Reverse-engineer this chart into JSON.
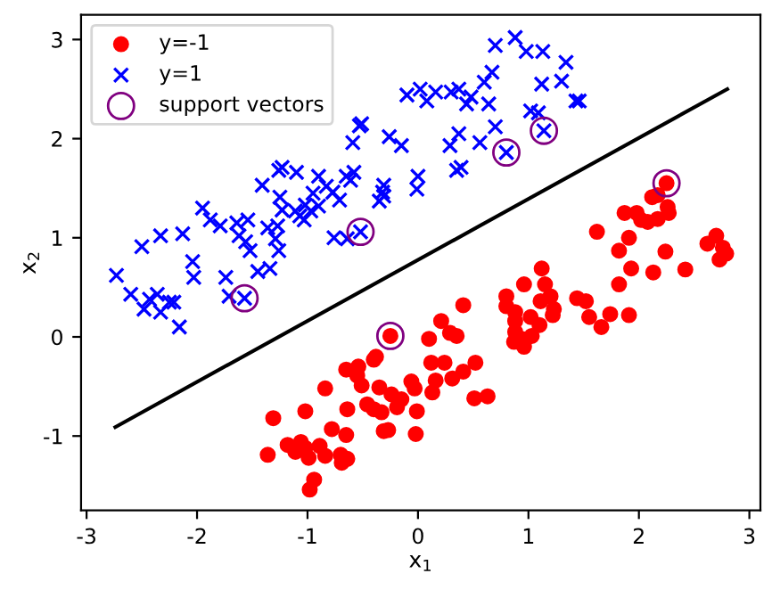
{
  "chart_data": {
    "type": "scatter",
    "xlabel": "x$_{1}$",
    "ylabel": "x$_{2}$",
    "xlim": [
      -3.05,
      3.1
    ],
    "ylim": [
      -1.75,
      3.25
    ],
    "xticks": [
      -3,
      -2,
      -1,
      0,
      1,
      2,
      3
    ],
    "yticks": [
      -1,
      0,
      1,
      2,
      3
    ],
    "grid": false,
    "legend": "top left",
    "series": [
      {
        "name": "y=-1",
        "color": "#ff0000",
        "marker": "circle",
        "x": [
          2.25,
          2.12,
          2.17,
          1.87,
          1.98,
          2.02,
          2.08,
          2.17,
          2.26,
          2.27,
          1.62,
          1.91,
          1.82,
          2.24,
          1.93,
          2.13,
          2.42,
          2.62,
          2.7,
          2.76,
          2.73,
          2.79,
          1.82,
          1.12,
          0.96,
          1.15,
          1.2,
          1.11,
          1.23,
          1.22,
          0.8,
          0.8,
          0.41,
          1.44,
          1.52,
          1.55,
          1.74,
          1.91,
          1.66,
          0.88,
          0.88,
          1.02,
          1.1,
          0.21,
          -0.25,
          0.1,
          0.29,
          0.35,
          0.88,
          0.94,
          0.96,
          1.03,
          -0.4,
          -0.38,
          -0.54,
          -0.51,
          -0.35,
          -0.46,
          -0.4,
          -0.33,
          -0.24,
          -0.15,
          -0.19,
          -0.06,
          -0.03,
          -0.01,
          -0.31,
          -0.27,
          -0.02,
          0.12,
          0.16,
          0.24,
          0.13,
          0.31,
          0.41,
          0.52,
          0.51,
          0.63,
          0.87,
          -0.65,
          -0.55,
          -0.84,
          -0.64,
          -1.02,
          -1.31,
          -0.78,
          -0.65,
          -1.18,
          -1.06,
          -1.02,
          -1.11,
          -0.99,
          -0.89,
          -0.84,
          -0.7,
          -0.64,
          -0.69,
          -1.36,
          -0.94,
          -0.98
        ],
        "values": [
          1.55,
          1.41,
          1.43,
          1.25,
          1.25,
          1.18,
          1.16,
          1.19,
          1.31,
          1.25,
          1.06,
          1.0,
          0.87,
          0.86,
          0.69,
          0.65,
          0.68,
          0.94,
          1.02,
          0.9,
          0.78,
          0.84,
          0.53,
          0.69,
          0.53,
          0.53,
          0.41,
          0.36,
          0.28,
          0.22,
          0.41,
          0.31,
          0.32,
          0.39,
          0.36,
          0.2,
          0.23,
          0.22,
          0.1,
          0.25,
          0.16,
          0.2,
          0.12,
          0.16,
          0.01,
          -0.02,
          0.04,
          0.01,
          0.05,
          -0.02,
          -0.1,
          0.01,
          -0.23,
          -0.2,
          -0.3,
          -0.49,
          -0.51,
          -0.68,
          -0.73,
          -0.76,
          -0.58,
          -0.63,
          -0.71,
          -0.45,
          -0.52,
          -0.75,
          -0.95,
          -0.94,
          -0.98,
          -0.26,
          -0.44,
          -0.26,
          -0.56,
          -0.42,
          -0.35,
          -0.26,
          -0.62,
          -0.6,
          -0.05,
          -0.33,
          -0.39,
          -0.52,
          -0.73,
          -0.75,
          -0.82,
          -0.93,
          -0.99,
          -1.09,
          -1.06,
          -1.12,
          -1.16,
          -1.22,
          -1.1,
          -1.2,
          -1.19,
          -1.23,
          -1.27,
          -1.19,
          -1.44,
          -1.54
        ]
      },
      {
        "name": "y=1",
        "color": "#0000ff",
        "marker": "cross",
        "x": [
          -2.73,
          -2.6,
          -2.5,
          -2.33,
          -2.13,
          -2.48,
          -2.43,
          -2.36,
          -2.33,
          -2.25,
          -2.21,
          -2.16,
          -2.04,
          -2.03,
          -1.95,
          -1.88,
          -1.79,
          -1.74,
          -1.71,
          -1.64,
          -1.54,
          -1.62,
          -1.56,
          -1.52,
          -1.57,
          -1.45,
          -1.34,
          -1.41,
          -1.36,
          -1.29,
          -1.26,
          -1.27,
          -1.25,
          -1.26,
          -1.23,
          -1.1,
          -1.23,
          -1.11,
          -1.07,
          -1.02,
          -1.03,
          -0.95,
          -0.9,
          -0.97,
          -0.9,
          -0.83,
          -0.77,
          -0.71,
          -0.65,
          -0.58,
          -0.61,
          -0.76,
          -0.64,
          -0.52,
          -0.59,
          -0.53,
          -0.32,
          -0.31,
          -0.26,
          -0.15,
          0.0,
          -0.01,
          -0.1,
          0.02,
          0.08,
          0.7,
          0.88,
          0.98,
          1.13,
          1.34,
          1.3,
          1.12,
          0.67,
          0.6,
          0.16,
          0.3,
          0.37,
          0.44,
          0.48,
          0.64,
          1.43,
          1.46,
          1.02,
          1.09,
          1.14,
          0.7,
          0.56,
          0.8,
          0.37,
          0.29,
          0.35,
          0.39,
          -0.35,
          -0.31,
          -0.51
        ],
        "values": [
          0.62,
          0.43,
          0.91,
          1.02,
          1.04,
          0.28,
          0.38,
          0.43,
          0.25,
          0.35,
          0.35,
          0.1,
          0.76,
          0.6,
          1.3,
          1.18,
          1.12,
          0.6,
          0.41,
          1.15,
          1.18,
          1.02,
          0.96,
          0.87,
          0.39,
          0.66,
          0.69,
          1.53,
          1.1,
          0.99,
          0.87,
          1.12,
          1.41,
          1.68,
          1.71,
          1.66,
          1.28,
          1.27,
          1.22,
          1.33,
          1.18,
          1.45,
          1.62,
          1.27,
          1.32,
          1.52,
          1.46,
          1.38,
          1.62,
          1.66,
          1.58,
          1.0,
          0.99,
          1.06,
          1.96,
          2.13,
          1.46,
          1.53,
          2.02,
          1.93,
          1.62,
          1.49,
          2.44,
          2.5,
          2.38,
          2.94,
          3.02,
          2.88,
          2.88,
          2.77,
          2.58,
          2.55,
          2.67,
          2.57,
          2.47,
          2.47,
          2.5,
          2.35,
          2.42,
          2.35,
          2.38,
          2.38,
          2.28,
          2.26,
          2.08,
          2.12,
          1.96,
          1.86,
          2.05,
          1.93,
          1.68,
          1.71,
          1.37,
          1.42,
          2.15
        ]
      },
      {
        "name": "support vectors",
        "color": "#800080",
        "marker": "circle",
        "x": [
          -1.57,
          -0.52,
          0.8,
          1.14,
          2.25,
          -0.25
        ],
        "values": [
          0.39,
          1.06,
          1.86,
          2.08,
          1.55,
          0.01
        ]
      },
      {
        "type": "line",
        "color": "#000000",
        "x": [
          -2.74,
          2.8
        ],
        "values": [
          -0.91,
          2.5
        ]
      }
    ]
  }
}
